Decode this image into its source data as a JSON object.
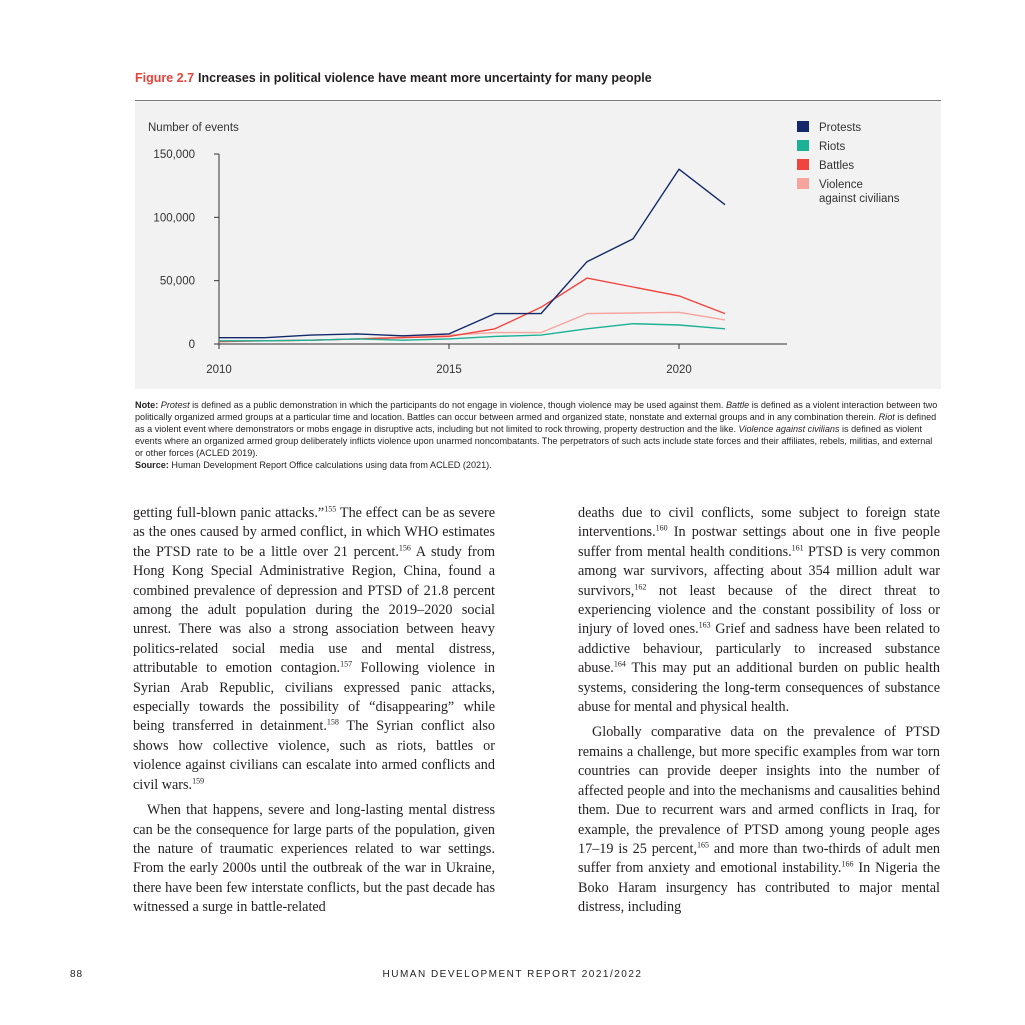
{
  "figure": {
    "number": "Figure 2.7",
    "title": "Increases in political violence have meant more uncertainty for many people"
  },
  "chart_data": {
    "type": "line",
    "ylabel": "Number of events",
    "x_ticks": [
      "2010",
      "2015",
      "2020"
    ],
    "y_ticks": [
      "150,000",
      "100,000",
      "50,000",
      "0"
    ],
    "xlim": [
      2010,
      2021
    ],
    "ylim": [
      0,
      150000
    ],
    "legend_position": "top-right",
    "x": [
      2010,
      2011,
      2012,
      2013,
      2014,
      2015,
      2016,
      2017,
      2018,
      2019,
      2020,
      2021
    ],
    "series": [
      {
        "name": "Protests",
        "color": "#13296a",
        "values": [
          5000,
          5000,
          7000,
          8000,
          6500,
          8000,
          24000,
          24000,
          65000,
          83000,
          138000,
          110000
        ]
      },
      {
        "name": "Riots",
        "color": "#1bb194",
        "values": [
          2500,
          2500,
          3000,
          4000,
          3000,
          4000,
          6000,
          7000,
          12000,
          16000,
          15000,
          12000
        ]
      },
      {
        "name": "Battles",
        "color": "#f0443e",
        "values": [
          2000,
          2500,
          3000,
          4000,
          5000,
          6000,
          12000,
          29000,
          52000,
          45000,
          38000,
          24000
        ]
      },
      {
        "name": "Violence\nagainst civilians",
        "color": "#f7a49c",
        "values": [
          2000,
          2500,
          3000,
          4000,
          5500,
          7000,
          9000,
          9000,
          24000,
          24500,
          25000,
          19000
        ]
      }
    ]
  },
  "note": {
    "label": "Note:",
    "segments": [
      {
        "t": "Protest",
        "i": true
      },
      {
        "t": " is defined as a public demonstration in which the participants do not engage in violence, though violence may be used against them. ",
        "i": false
      },
      {
        "t": "Battle",
        "i": true
      },
      {
        "t": " is defined as a violent interaction between two politically organized armed groups at a particular time and location. Battles can occur between armed and organized state, nonstate and external groups and in any combination therein. ",
        "i": false
      },
      {
        "t": "Riot",
        "i": true
      },
      {
        "t": " is defined as a violent event where demonstrators or mobs engage in disruptive acts, including but not limited to rock throwing, property destruction and the like. ",
        "i": false
      },
      {
        "t": "Violence against civilians",
        "i": true
      },
      {
        "t": " is defined as violent events where an organized armed group deliberately inflicts violence upon unarmed noncombatants. The perpetrators of such acts include state forces and their affiliates, rebels, militias, and external or other forces (ACLED 2019).",
        "i": false
      }
    ]
  },
  "source": {
    "label": "Source:",
    "text": "Human Development Report Office calculations using data from ACLED (2021)."
  },
  "body": {
    "left": [
      [
        {
          "t": "getting full-blown panic attacks.”"
        },
        {
          "s": "155"
        },
        {
          "t": " The effect can be as severe as the ones caused by armed conflict, in which WHO estimates the PTSD rate to be a little over 21 percent."
        },
        {
          "s": "156"
        },
        {
          "t": " A study from Hong Kong Special Administrative Region, China, found a combined prevalence of depression and PTSD of 21.8 percent among the adult population during the 2019–2020 social unrest. There was also a strong association between heavy politics-related social media use and mental distress, attributable to emotion contagion."
        },
        {
          "s": "157"
        },
        {
          "t": " Following violence in Syrian Arab Republic, civilians expressed panic attacks, especially towards the possibility of “disappearing” while being transferred in detainment."
        },
        {
          "s": "158"
        },
        {
          "t": " The Syrian conflict also shows how collective violence, such as riots, battles or violence against civilians can escalate into armed conflicts and civil wars."
        },
        {
          "s": "159"
        }
      ],
      [
        {
          "t": "When that happens, severe and long-lasting mental distress can be the consequence for large parts of the population, given the nature of traumatic experiences related to war settings. From the early 2000s until the outbreak of the war in Ukraine, there have been few interstate conflicts, but the past decade has witnessed a surge in battle-related"
        }
      ]
    ],
    "right": [
      [
        {
          "t": "deaths due to civil conflicts, some subject to foreign state interventions."
        },
        {
          "s": "160"
        },
        {
          "t": " In postwar settings about one in five people suffer from mental health conditions."
        },
        {
          "s": "161"
        },
        {
          "t": " PTSD is very common among war survivors, affecting about 354 million adult war survivors,"
        },
        {
          "s": "162"
        },
        {
          "t": " not least because of the direct threat to experiencing violence and the constant possibility of loss or injury of loved ones."
        },
        {
          "s": "163"
        },
        {
          "t": " Grief and sadness have been related to addictive behaviour, particularly to increased substance abuse."
        },
        {
          "s": "164"
        },
        {
          "t": " This may put an additional burden on public health systems, considering the long-term consequences of substance abuse for mental and physical health."
        }
      ],
      [
        {
          "t": "Globally comparative data on the prevalence of PTSD remains a challenge, but more specific examples from war torn countries can provide deeper insights into the number of affected people and into the mechanisms and causalities behind them. Due to recurrent wars and armed conflicts in Iraq, for example, the prevalence of PTSD among young people ages 17–19 is 25 percent,"
        },
        {
          "s": "165"
        },
        {
          "t": " and more than two-thirds of adult men suffer from anxiety and emotional instability."
        },
        {
          "s": "166"
        },
        {
          "t": " In Nigeria the Boko Haram insurgency has contributed to major mental distress, including"
        }
      ]
    ]
  },
  "footer": {
    "page_number": "88",
    "report_title": "HUMAN DEVELOPMENT REPORT 2021/2022"
  }
}
